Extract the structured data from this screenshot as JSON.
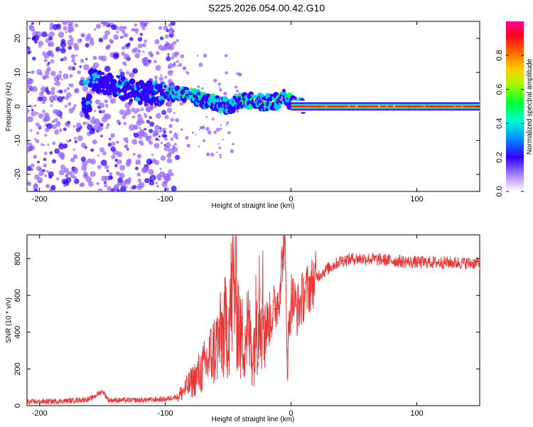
{
  "title": "S225.2026.054.00.42.G10",
  "chart_data": [
    {
      "type": "heatmap",
      "name": "spectrogram",
      "xlabel": "Height of straight line (km)",
      "ylabel": "Frequency (Hz)",
      "xlim": [
        -210,
        150
      ],
      "ylim": [
        -25,
        25
      ],
      "xticks": [
        -200,
        -100,
        0,
        100
      ],
      "yticks": [
        -20,
        -10,
        0,
        10,
        20
      ],
      "colorbar": {
        "label": "Normalized spectral amplitude",
        "range": [
          0,
          1
        ],
        "ticks": [
          0.0,
          0.2,
          0.4,
          0.6,
          0.8
        ],
        "colors": [
          "#ffffff",
          "#9966ff",
          "#3300ff",
          "#00ccff",
          "#00ff66",
          "#ccff00",
          "#ff9900",
          "#ff0000",
          "#ff00aa"
        ]
      },
      "ridge": {
        "x": [
          -160,
          -140,
          -120,
          -100,
          -90,
          -80,
          -70,
          -60,
          -50,
          -40,
          -30,
          -20,
          -10,
          -5,
          0,
          10,
          50,
          100,
          150
        ],
        "y": [
          8,
          6,
          4,
          3.5,
          4,
          3,
          2,
          1,
          0,
          1.5,
          2,
          1,
          1.5,
          3,
          1,
          0,
          0,
          0,
          0
        ]
      }
    },
    {
      "type": "line",
      "name": "snr",
      "xlabel": "Height of straight line (km)",
      "ylabel": "SNR (10 * v/v)",
      "xlim": [
        -210,
        150
      ],
      "ylim": [
        0,
        930
      ],
      "xticks": [
        -200,
        -100,
        0,
        100
      ],
      "yticks": [
        0,
        200,
        400,
        600,
        800
      ],
      "color": "#ee3333",
      "series": [
        {
          "name": "SNR",
          "x": [
            -210,
            -180,
            -160,
            -150,
            -145,
            -120,
            -100,
            -90,
            -80,
            -70,
            -60,
            -50,
            -45,
            -40,
            -35,
            -30,
            -25,
            -20,
            -15,
            -10,
            -5,
            -3,
            0,
            5,
            10,
            20,
            30,
            40,
            50,
            60,
            80,
            100,
            120,
            150
          ],
          "y": [
            20,
            25,
            35,
            80,
            30,
            30,
            35,
            50,
            120,
            200,
            320,
            450,
            700,
            350,
            420,
            300,
            650,
            430,
            500,
            580,
            930,
            250,
            600,
            520,
            600,
            700,
            750,
            790,
            800,
            800,
            790,
            780,
            780,
            775
          ]
        }
      ]
    }
  ]
}
